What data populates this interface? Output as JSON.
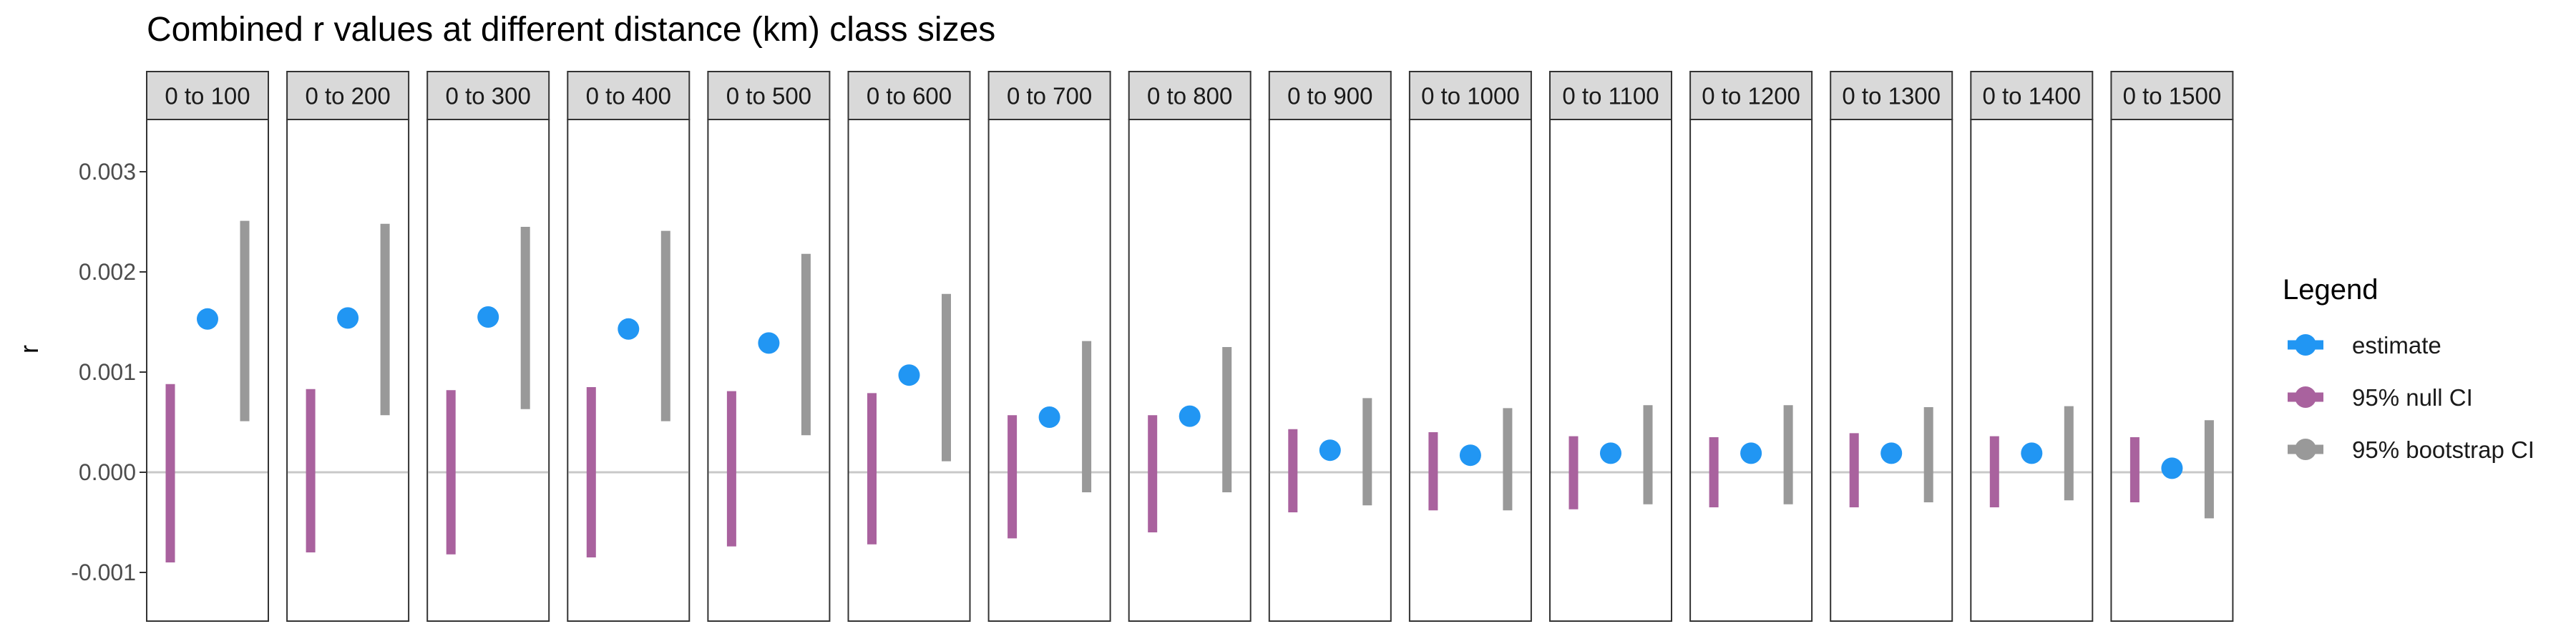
{
  "colors": {
    "estimate": "#2196F3",
    "null_ci": "#A9629E",
    "bootstrap_ci": "#999999",
    "strip_fill": "#D9D9D9",
    "panel_border": "#333333",
    "zero_line": "#C8C8C8",
    "axis_text": "#4D4D4D"
  },
  "chart_data": {
    "type": "scatter",
    "title": "Combined r values at different distance (km) class sizes",
    "xlabel": "",
    "ylabel": "r",
    "ylim": [
      -0.00143,
      0.00322
    ],
    "yticks": [
      -0.001,
      0.0,
      0.001,
      0.002,
      0.003
    ],
    "ytick_labels": [
      "-0.001",
      "0.000",
      "0.001",
      "0.002",
      "0.003"
    ],
    "grid": false,
    "reference_line": 0.0,
    "legend": {
      "title": "Legend",
      "placement": "right",
      "entries": [
        "estimate",
        "95% null CI",
        "95% bootstrap CI"
      ]
    },
    "facets": [
      {
        "label": "0 to 100",
        "estimate": 0.00153,
        "null_ci": [
          -0.0009,
          0.00088
        ],
        "bootstrap_ci": [
          0.00051,
          0.00251
        ]
      },
      {
        "label": "0 to 200",
        "estimate": 0.00154,
        "null_ci": [
          -0.0008,
          0.00083
        ],
        "bootstrap_ci": [
          0.00057,
          0.00248
        ]
      },
      {
        "label": "0 to 300",
        "estimate": 0.00155,
        "null_ci": [
          -0.00082,
          0.00082
        ],
        "bootstrap_ci": [
          0.00063,
          0.00245
        ]
      },
      {
        "label": "0 to 400",
        "estimate": 0.00143,
        "null_ci": [
          -0.00085,
          0.00085
        ],
        "bootstrap_ci": [
          0.00051,
          0.00241
        ]
      },
      {
        "label": "0 to 500",
        "estimate": 0.00129,
        "null_ci": [
          -0.00074,
          0.00081
        ],
        "bootstrap_ci": [
          0.00037,
          0.00218
        ]
      },
      {
        "label": "0 to 600",
        "estimate": 0.00097,
        "null_ci": [
          -0.00072,
          0.00079
        ],
        "bootstrap_ci": [
          0.00011,
          0.00178
        ]
      },
      {
        "label": "0 to 700",
        "estimate": 0.00055,
        "null_ci": [
          -0.00066,
          0.00057
        ],
        "bootstrap_ci": [
          -0.0002,
          0.00131
        ]
      },
      {
        "label": "0 to 800",
        "estimate": 0.00056,
        "null_ci": [
          -0.0006,
          0.00057
        ],
        "bootstrap_ci": [
          -0.0002,
          0.00125
        ]
      },
      {
        "label": "0 to 900",
        "estimate": 0.00022,
        "null_ci": [
          -0.0004,
          0.00043
        ],
        "bootstrap_ci": [
          -0.00033,
          0.00074
        ]
      },
      {
        "label": "0 to 1000",
        "estimate": 0.00017,
        "null_ci": [
          -0.00038,
          0.0004
        ],
        "bootstrap_ci": [
          -0.00038,
          0.00064
        ]
      },
      {
        "label": "0 to 1100",
        "estimate": 0.00019,
        "null_ci": [
          -0.00037,
          0.00036
        ],
        "bootstrap_ci": [
          -0.00032,
          0.00067
        ]
      },
      {
        "label": "0 to 1200",
        "estimate": 0.00019,
        "null_ci": [
          -0.00035,
          0.00035
        ],
        "bootstrap_ci": [
          -0.00032,
          0.00067
        ]
      },
      {
        "label": "0 to 1300",
        "estimate": 0.00019,
        "null_ci": [
          -0.00035,
          0.00039
        ],
        "bootstrap_ci": [
          -0.0003,
          0.00065
        ]
      },
      {
        "label": "0 to 1400",
        "estimate": 0.00019,
        "null_ci": [
          -0.00035,
          0.00036
        ],
        "bootstrap_ci": [
          -0.00028,
          0.00066
        ]
      },
      {
        "label": "0 to 1500",
        "estimate": 4e-05,
        "null_ci": [
          -0.0003,
          0.00035
        ],
        "bootstrap_ci": [
          -0.00046,
          0.00052
        ]
      }
    ]
  }
}
